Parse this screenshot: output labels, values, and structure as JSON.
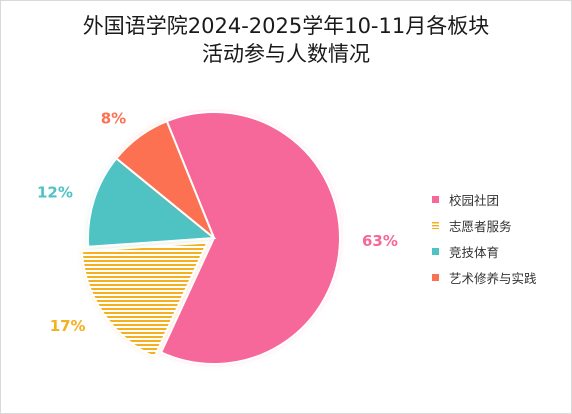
{
  "chart_data": {
    "type": "pie",
    "title_line1": "外国语学院2024-2025学年10-11月各板块",
    "title_line2": "活动参与人数情况",
    "categories": [
      "校园社团",
      "志愿者服务",
      "竞技体育",
      "艺术修养与实践"
    ],
    "values": [
      63,
      17,
      12,
      8
    ],
    "labels": [
      "63%",
      "17%",
      "12%",
      "8%"
    ],
    "colors": [
      "#f6679a",
      "#f4b01f",
      "#4fc3c3",
      "#fb7152"
    ],
    "exploded": "志愿者服务",
    "legend_position": "right"
  }
}
